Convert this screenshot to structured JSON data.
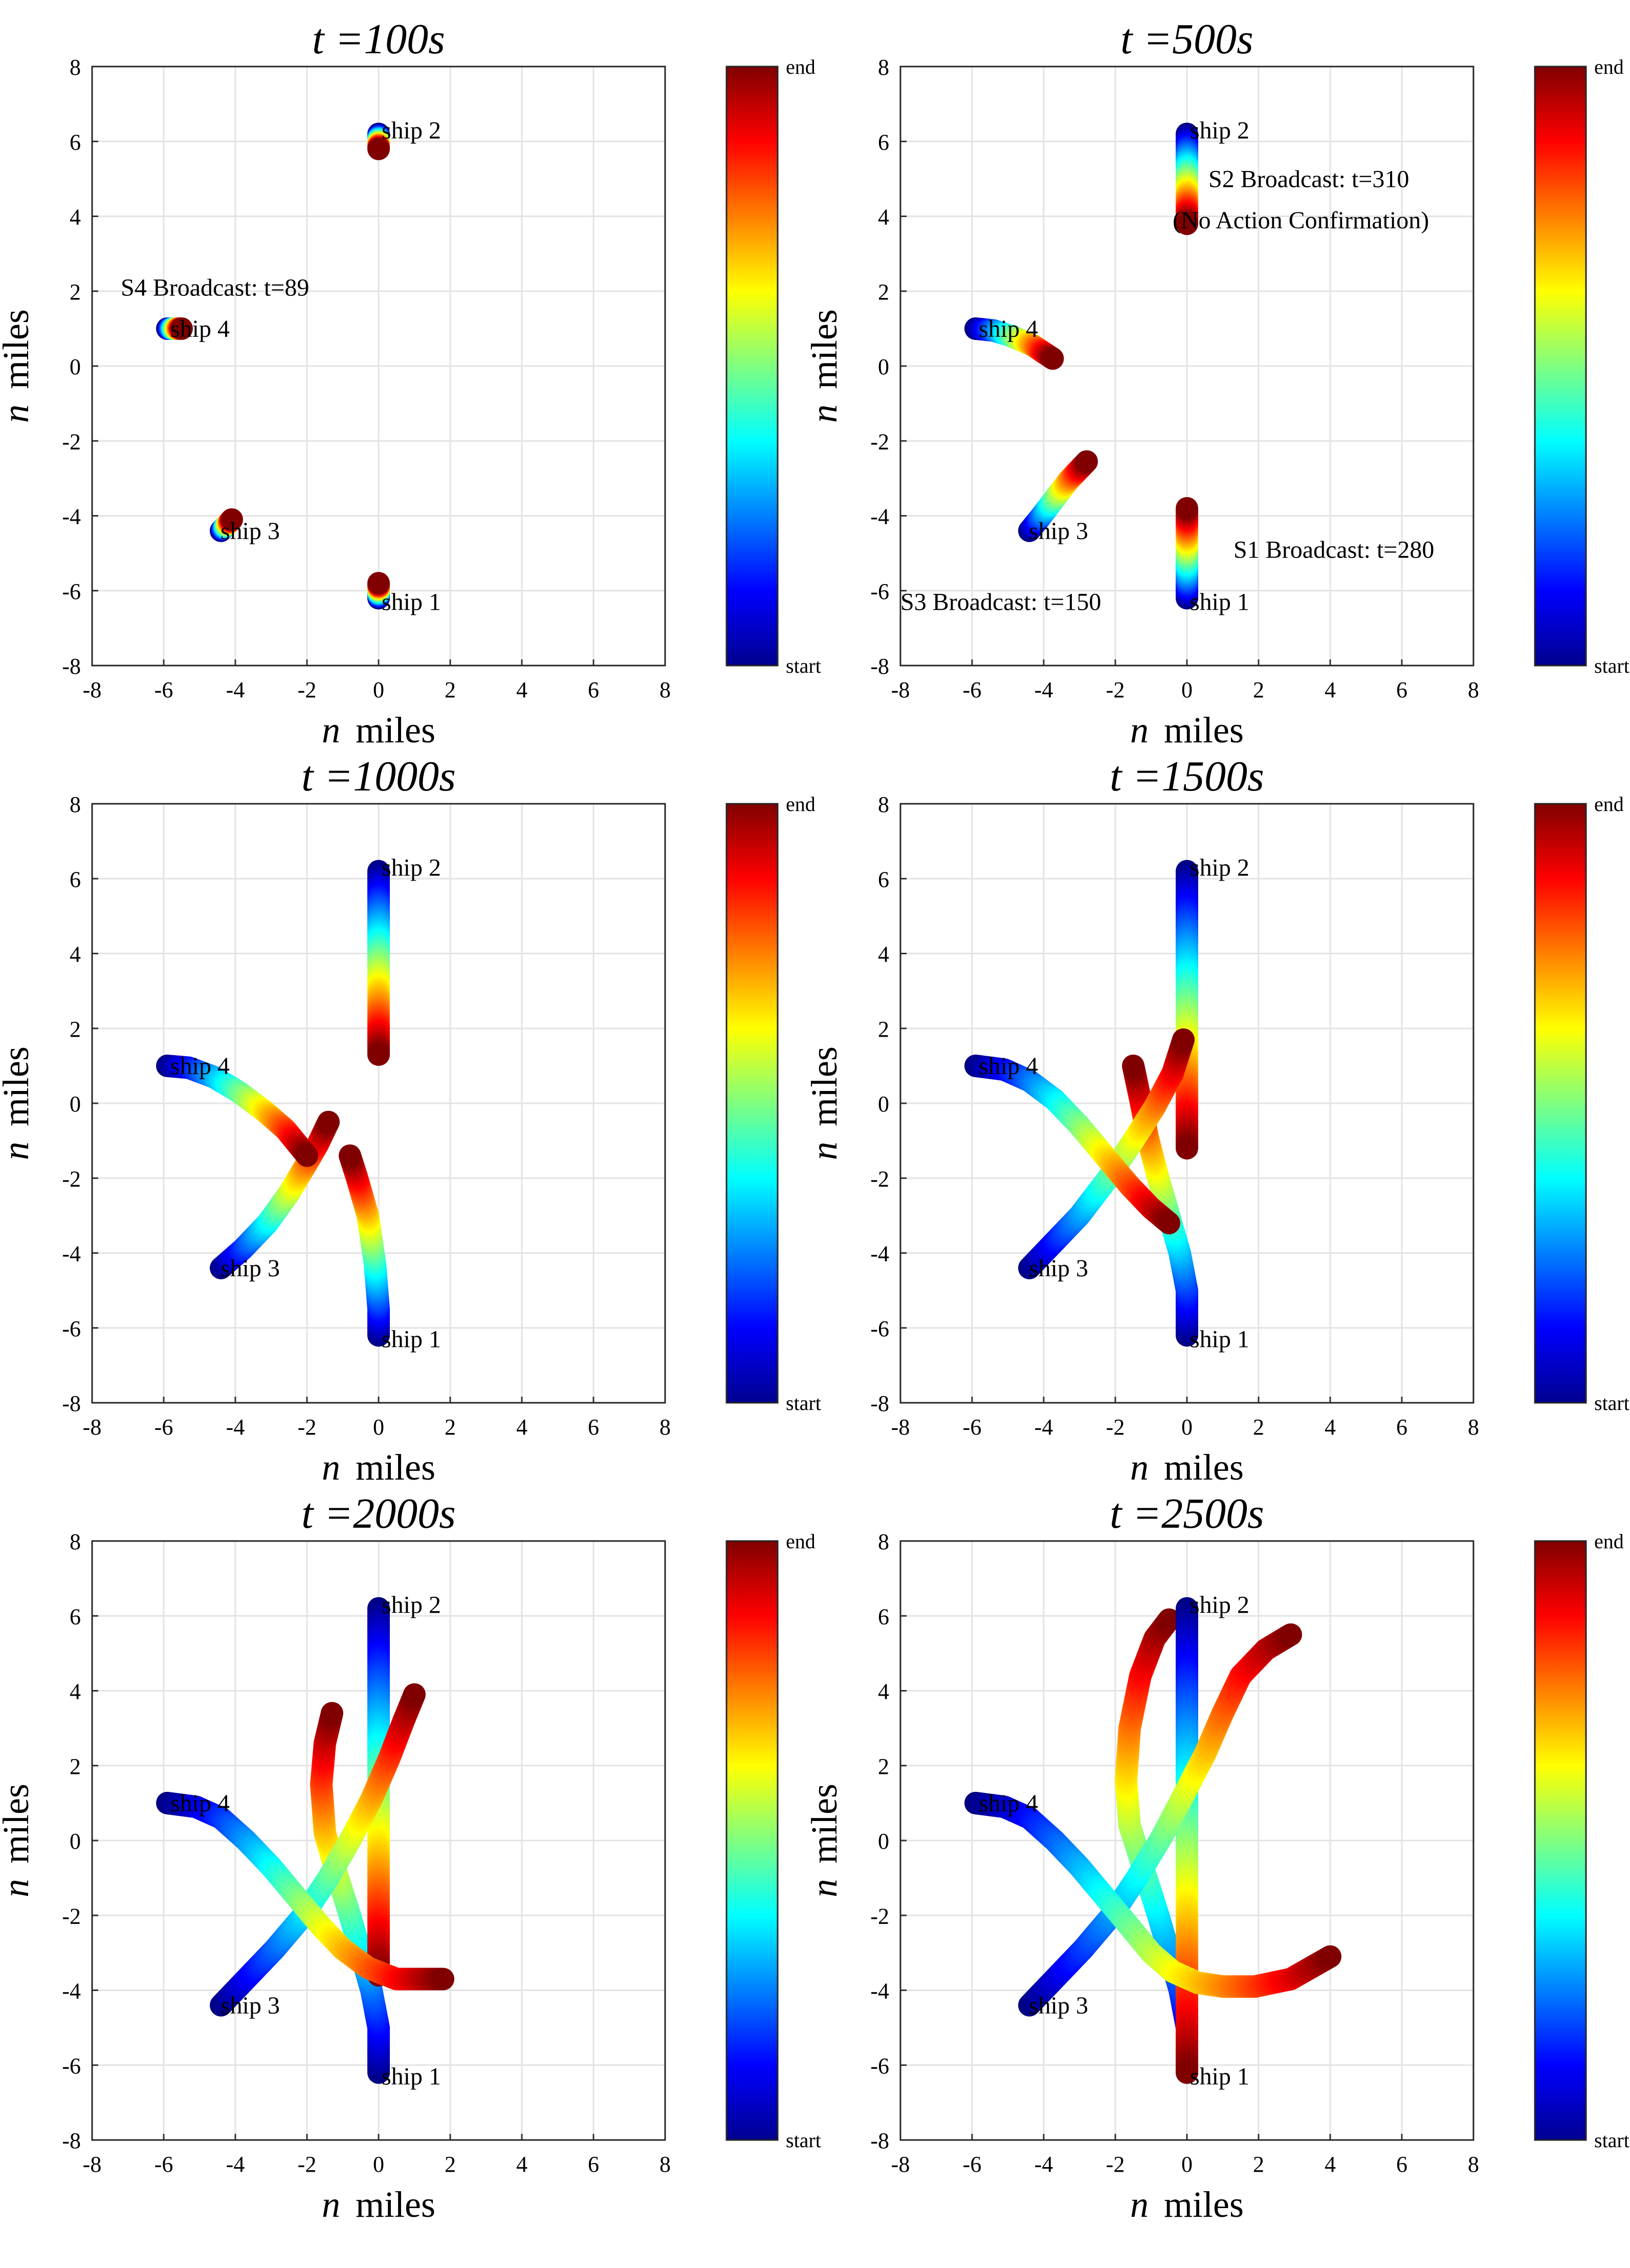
{
  "figure": {
    "colorbar": {
      "top_label": "end",
      "bottom_label": "start"
    },
    "axis_label_italic": "n",
    "axis_label_rest": "miles"
  },
  "chart_data": [
    {
      "type": "scatter",
      "title": "t =100s",
      "xlabel": "n  miles",
      "ylabel": "n  miles",
      "xlim": [
        -8,
        8
      ],
      "ylim": [
        -8,
        8
      ],
      "grid": true,
      "xticks": [
        "-8",
        "-6",
        "-4",
        "-2",
        "0",
        "2",
        "4",
        "6",
        "8"
      ],
      "yticks": [
        "8",
        "6",
        "4",
        "2",
        "0",
        "-2",
        "-4",
        "-6",
        "-8"
      ],
      "labels": [
        {
          "text": "ship 2",
          "x": 0,
          "y": 6.3
        },
        {
          "text": "ship 4",
          "x": -5.9,
          "y": 1.0
        },
        {
          "text": "ship 3",
          "x": -4.5,
          "y": -4.4
        },
        {
          "text": "ship 1",
          "x": 0,
          "y": -6.3
        }
      ],
      "annotations": [
        {
          "text": "S4 Broadcast: t=89",
          "x": -7.2,
          "y": 2.1
        }
      ],
      "series": [
        {
          "name": "ship 1",
          "points": [
            [
              0,
              -6.2
            ],
            [
              0,
              -5.8
            ]
          ]
        },
        {
          "name": "ship 2",
          "points": [
            [
              0,
              6.2
            ],
            [
              0,
              5.8
            ]
          ]
        },
        {
          "name": "ship 3",
          "points": [
            [
              -4.4,
              -4.4
            ],
            [
              -4.1,
              -4.1
            ]
          ]
        },
        {
          "name": "ship 4",
          "points": [
            [
              -5.9,
              1.0
            ],
            [
              -5.5,
              1.0
            ]
          ]
        }
      ]
    },
    {
      "type": "scatter",
      "title": "t =500s",
      "xlabel": "n  miles",
      "ylabel": "n  miles",
      "xlim": [
        -8,
        8
      ],
      "ylim": [
        -8,
        8
      ],
      "grid": true,
      "xticks": [
        "-8",
        "-6",
        "-4",
        "-2",
        "0",
        "2",
        "4",
        "6",
        "8"
      ],
      "yticks": [
        "8",
        "6",
        "4",
        "2",
        "0",
        "-2",
        "-4",
        "-6",
        "-8"
      ],
      "labels": [
        {
          "text": "ship 2",
          "x": 0,
          "y": 6.3
        },
        {
          "text": "ship 4",
          "x": -5.9,
          "y": 1.0
        },
        {
          "text": "ship 3",
          "x": -4.5,
          "y": -4.4
        },
        {
          "text": "ship 1",
          "x": 0,
          "y": -6.3
        }
      ],
      "annotations": [
        {
          "text": "S2 Broadcast: t=310",
          "x": 0.6,
          "y": 5.0
        },
        {
          "text": "(No Action Confirmation)",
          "x": -0.4,
          "y": 3.9
        },
        {
          "text": "S1 Broadcast: t=280",
          "x": 1.3,
          "y": -4.9
        },
        {
          "text": "S3 Broadcast: t=150",
          "x": -8.0,
          "y": -6.3
        }
      ],
      "series": [
        {
          "name": "ship 1",
          "points": [
            [
              0,
              -6.2
            ],
            [
              0,
              -3.8
            ]
          ]
        },
        {
          "name": "ship 2",
          "points": [
            [
              0,
              6.2
            ],
            [
              0,
              3.8
            ]
          ]
        },
        {
          "name": "ship 3",
          "points": [
            [
              -4.4,
              -4.4
            ],
            [
              -4.1,
              -4.05
            ],
            [
              -3.7,
              -3.55
            ],
            [
              -3.3,
              -3.05
            ],
            [
              -2.8,
              -2.55
            ]
          ]
        },
        {
          "name": "ship 4",
          "points": [
            [
              -5.9,
              1.0
            ],
            [
              -5.4,
              0.95
            ],
            [
              -4.9,
              0.8
            ],
            [
              -4.3,
              0.55
            ],
            [
              -3.75,
              0.2
            ]
          ]
        }
      ]
    },
    {
      "type": "scatter",
      "title": "t =1000s",
      "xlabel": "n  miles",
      "ylabel": "n  miles",
      "xlim": [
        -8,
        8
      ],
      "ylim": [
        -8,
        8
      ],
      "grid": true,
      "xticks": [
        "-8",
        "-6",
        "-4",
        "-2",
        "0",
        "2",
        "4",
        "6",
        "8"
      ],
      "yticks": [
        "8",
        "6",
        "4",
        "2",
        "0",
        "-2",
        "-4",
        "-6",
        "-8"
      ],
      "labels": [
        {
          "text": "ship 2",
          "x": 0,
          "y": 6.3
        },
        {
          "text": "ship 4",
          "x": -5.9,
          "y": 1.0
        },
        {
          "text": "ship 3",
          "x": -4.5,
          "y": -4.4
        },
        {
          "text": "ship 1",
          "x": 0,
          "y": -6.3
        }
      ],
      "annotations": [],
      "series": [
        {
          "name": "ship 1",
          "points": [
            [
              0,
              -6.2
            ],
            [
              0,
              -5.5
            ],
            [
              -0.1,
              -4.3
            ],
            [
              -0.3,
              -3.0
            ],
            [
              -0.6,
              -2.0
            ],
            [
              -0.8,
              -1.4
            ]
          ]
        },
        {
          "name": "ship 2",
          "points": [
            [
              0,
              6.2
            ],
            [
              0,
              4.5
            ],
            [
              0,
              3.0
            ],
            [
              0,
              1.3
            ]
          ]
        },
        {
          "name": "ship 3",
          "points": [
            [
              -4.4,
              -4.4
            ],
            [
              -3.8,
              -3.9
            ],
            [
              -3.1,
              -3.2
            ],
            [
              -2.5,
              -2.4
            ],
            [
              -2.0,
              -1.6
            ],
            [
              -1.7,
              -1.1
            ],
            [
              -1.4,
              -0.5
            ]
          ]
        },
        {
          "name": "ship 4",
          "points": [
            [
              -5.9,
              1.0
            ],
            [
              -5.3,
              0.95
            ],
            [
              -4.6,
              0.7
            ],
            [
              -3.9,
              0.3
            ],
            [
              -3.2,
              -0.2
            ],
            [
              -2.6,
              -0.7
            ],
            [
              -2.0,
              -1.4
            ]
          ]
        }
      ]
    },
    {
      "type": "scatter",
      "title": "t =1500s",
      "xlabel": "n  miles",
      "ylabel": "n  miles",
      "xlim": [
        -8,
        8
      ],
      "ylim": [
        -8,
        8
      ],
      "grid": true,
      "xticks": [
        "-8",
        "-6",
        "-4",
        "-2",
        "0",
        "2",
        "4",
        "6",
        "8"
      ],
      "yticks": [
        "8",
        "6",
        "4",
        "2",
        "0",
        "-2",
        "-4",
        "-6",
        "-8"
      ],
      "labels": [
        {
          "text": "ship 2",
          "x": 0,
          "y": 6.3
        },
        {
          "text": "ship 4",
          "x": -5.9,
          "y": 1.0
        },
        {
          "text": "ship 3",
          "x": -4.5,
          "y": -4.4
        },
        {
          "text": "ship 1",
          "x": 0,
          "y": -6.3
        }
      ],
      "annotations": [],
      "series": [
        {
          "name": "ship 1",
          "points": [
            [
              0,
              -6.2
            ],
            [
              0,
              -5.0
            ],
            [
              -0.2,
              -4.0
            ],
            [
              -0.5,
              -3.0
            ],
            [
              -0.8,
              -2.0
            ],
            [
              -1.1,
              -0.9
            ],
            [
              -1.3,
              0.1
            ],
            [
              -1.5,
              1.0
            ]
          ]
        },
        {
          "name": "ship 2",
          "points": [
            [
              0,
              6.2
            ],
            [
              0,
              4.0
            ],
            [
              0,
              2.0
            ],
            [
              0,
              0.5
            ],
            [
              0,
              -1.2
            ]
          ]
        },
        {
          "name": "ship 3",
          "points": [
            [
              -4.4,
              -4.4
            ],
            [
              -3.8,
              -3.8
            ],
            [
              -3.0,
              -3.0
            ],
            [
              -2.2,
              -2.0
            ],
            [
              -1.5,
              -1.0
            ],
            [
              -0.9,
              -0.1
            ],
            [
              -0.4,
              0.8
            ],
            [
              -0.1,
              1.7
            ]
          ]
        },
        {
          "name": "ship 4",
          "points": [
            [
              -5.9,
              1.0
            ],
            [
              -5.1,
              0.9
            ],
            [
              -4.4,
              0.6
            ],
            [
              -3.7,
              0.1
            ],
            [
              -3.0,
              -0.6
            ],
            [
              -2.3,
              -1.4
            ],
            [
              -1.6,
              -2.2
            ],
            [
              -1.0,
              -2.8
            ],
            [
              -0.5,
              -3.2
            ]
          ]
        }
      ]
    },
    {
      "type": "scatter",
      "title": "t =2000s",
      "xlabel": "n  miles",
      "ylabel": "n  miles",
      "xlim": [
        -8,
        8
      ],
      "ylim": [
        -8,
        8
      ],
      "grid": true,
      "xticks": [
        "-8",
        "-6",
        "-4",
        "-2",
        "0",
        "2",
        "4",
        "6",
        "8"
      ],
      "yticks": [
        "8",
        "6",
        "4",
        "2",
        "0",
        "-2",
        "-4",
        "-6",
        "-8"
      ],
      "labels": [
        {
          "text": "ship 2",
          "x": 0,
          "y": 6.3
        },
        {
          "text": "ship 4",
          "x": -5.9,
          "y": 1.0
        },
        {
          "text": "ship 3",
          "x": -4.5,
          "y": -4.4
        },
        {
          "text": "ship 1",
          "x": 0,
          "y": -6.3
        }
      ],
      "annotations": [],
      "series": [
        {
          "name": "ship 1",
          "points": [
            [
              0,
              -6.2
            ],
            [
              0,
              -5.0
            ],
            [
              -0.2,
              -4.0
            ],
            [
              -0.5,
              -3.0
            ],
            [
              -0.8,
              -2.0
            ],
            [
              -1.2,
              -0.8
            ],
            [
              -1.5,
              0.2
            ],
            [
              -1.6,
              1.5
            ],
            [
              -1.5,
              2.6
            ],
            [
              -1.3,
              3.4
            ]
          ]
        },
        {
          "name": "ship 2",
          "points": [
            [
              0,
              6.2
            ],
            [
              0,
              4.0
            ],
            [
              0,
              2.0
            ],
            [
              0,
              0.0
            ],
            [
              0,
              -2.0
            ],
            [
              0,
              -3.6
            ]
          ]
        },
        {
          "name": "ship 3",
          "points": [
            [
              -4.4,
              -4.4
            ],
            [
              -3.7,
              -3.7
            ],
            [
              -2.9,
              -2.9
            ],
            [
              -2.1,
              -2.0
            ],
            [
              -1.4,
              -1.0
            ],
            [
              -0.8,
              0.0
            ],
            [
              -0.2,
              1.1
            ],
            [
              0.3,
              2.2
            ],
            [
              0.7,
              3.2
            ],
            [
              1.0,
              3.9
            ]
          ]
        },
        {
          "name": "ship 4",
          "points": [
            [
              -5.9,
              1.0
            ],
            [
              -5.1,
              0.9
            ],
            [
              -4.4,
              0.6
            ],
            [
              -3.7,
              0.0
            ],
            [
              -3.0,
              -0.7
            ],
            [
              -2.3,
              -1.5
            ],
            [
              -1.6,
              -2.3
            ],
            [
              -1.0,
              -2.9
            ],
            [
              -0.3,
              -3.4
            ],
            [
              0.5,
              -3.7
            ],
            [
              1.2,
              -3.7
            ],
            [
              1.8,
              -3.7
            ]
          ]
        }
      ]
    },
    {
      "type": "scatter",
      "title": "t =2500s",
      "xlabel": "n  miles",
      "ylabel": "n  miles",
      "xlim": [
        -8,
        8
      ],
      "ylim": [
        -8,
        8
      ],
      "grid": true,
      "xticks": [
        "-8",
        "-6",
        "-4",
        "-2",
        "0",
        "2",
        "4",
        "6",
        "8"
      ],
      "yticks": [
        "8",
        "6",
        "4",
        "2",
        "0",
        "-2",
        "-4",
        "-6",
        "-8"
      ],
      "labels": [
        {
          "text": "ship 2",
          "x": 0,
          "y": 6.3
        },
        {
          "text": "ship 4",
          "x": -5.9,
          "y": 1.0
        },
        {
          "text": "ship 3",
          "x": -4.5,
          "y": -4.4
        },
        {
          "text": "ship 1",
          "x": 0,
          "y": -6.3
        }
      ],
      "annotations": [],
      "series": [
        {
          "name": "ship 1",
          "points": [
            [
              0,
              -6.2
            ],
            [
              0,
              -5.0
            ],
            [
              -0.2,
              -4.0
            ],
            [
              -0.5,
              -3.0
            ],
            [
              -0.8,
              -2.0
            ],
            [
              -1.2,
              -0.8
            ],
            [
              -1.6,
              0.4
            ],
            [
              -1.7,
              1.6
            ],
            [
              -1.6,
              3.0
            ],
            [
              -1.3,
              4.4
            ],
            [
              -0.9,
              5.4
            ],
            [
              -0.5,
              5.9
            ]
          ]
        },
        {
          "name": "ship 2",
          "points": [
            [
              0,
              6.2
            ],
            [
              0,
              4.0
            ],
            [
              0,
              2.0
            ],
            [
              0,
              0.0
            ],
            [
              0,
              -2.0
            ],
            [
              0,
              -4.0
            ],
            [
              0,
              -6.2
            ]
          ]
        },
        {
          "name": "ship 3",
          "points": [
            [
              -4.4,
              -4.4
            ],
            [
              -3.7,
              -3.7
            ],
            [
              -2.9,
              -2.9
            ],
            [
              -2.1,
              -2.0
            ],
            [
              -1.4,
              -1.0
            ],
            [
              -0.7,
              0.1
            ],
            [
              -0.1,
              1.2
            ],
            [
              0.5,
              2.3
            ],
            [
              1.0,
              3.4
            ],
            [
              1.5,
              4.4
            ],
            [
              2.2,
              5.1
            ],
            [
              2.9,
              5.5
            ]
          ]
        },
        {
          "name": "ship 4",
          "points": [
            [
              -5.9,
              1.0
            ],
            [
              -5.1,
              0.9
            ],
            [
              -4.4,
              0.6
            ],
            [
              -3.7,
              0.0
            ],
            [
              -3.0,
              -0.7
            ],
            [
              -2.3,
              -1.5
            ],
            [
              -1.6,
              -2.3
            ],
            [
              -1.0,
              -3.0
            ],
            [
              -0.4,
              -3.5
            ],
            [
              0.3,
              -3.8
            ],
            [
              1.0,
              -3.9
            ],
            [
              1.9,
              -3.9
            ],
            [
              2.9,
              -3.7
            ],
            [
              4.0,
              -3.1
            ]
          ]
        }
      ]
    }
  ]
}
